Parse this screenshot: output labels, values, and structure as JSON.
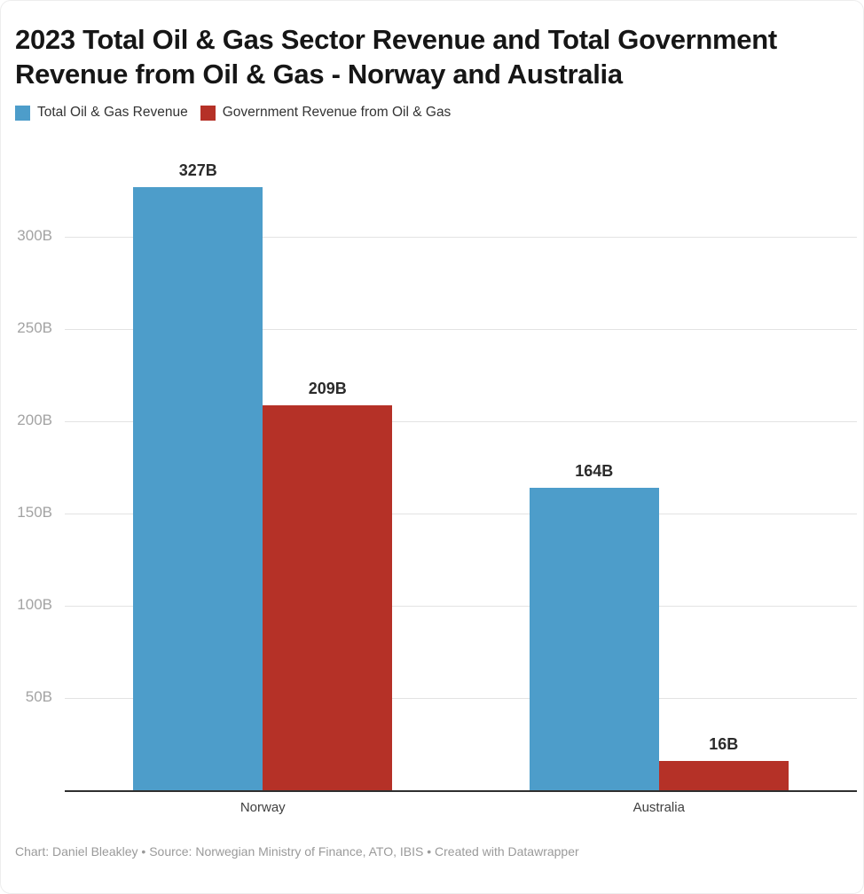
{
  "title": "2023 Total Oil & Gas Sector Revenue and Total Government\nRevenue from Oil & Gas - Norway and Australia",
  "legend": [
    {
      "label": "Total Oil & Gas Revenue",
      "color": "#4d9dca"
    },
    {
      "label": "Government Revenue from Oil & Gas",
      "color": "#b53127"
    }
  ],
  "footer": "Chart: Daniel Bleakley • Source: Norwegian Ministry of Finance, ATO, IBIS • Created with Datawrapper",
  "chart_data": {
    "type": "bar",
    "categories": [
      "Norway",
      "Australia"
    ],
    "series": [
      {
        "name": "Total Oil & Gas Revenue",
        "color": "#4d9dca",
        "values": [
          327,
          164
        ],
        "labels": [
          "327B",
          "164B"
        ]
      },
      {
        "name": "Government Revenue from Oil & Gas",
        "color": "#b53127",
        "values": [
          209,
          16
        ],
        "labels": [
          "209B",
          "16B"
        ]
      }
    ],
    "ylim": [
      0,
      344
    ],
    "yticks": [
      {
        "value": 50,
        "label": "50B"
      },
      {
        "value": 100,
        "label": "100B"
      },
      {
        "value": 150,
        "label": "150B"
      },
      {
        "value": 200,
        "label": "200B"
      },
      {
        "value": 250,
        "label": "250B"
      },
      {
        "value": 300,
        "label": "300B"
      }
    ],
    "grid": true,
    "legend_position": "top",
    "value_labels": "above-bars"
  }
}
